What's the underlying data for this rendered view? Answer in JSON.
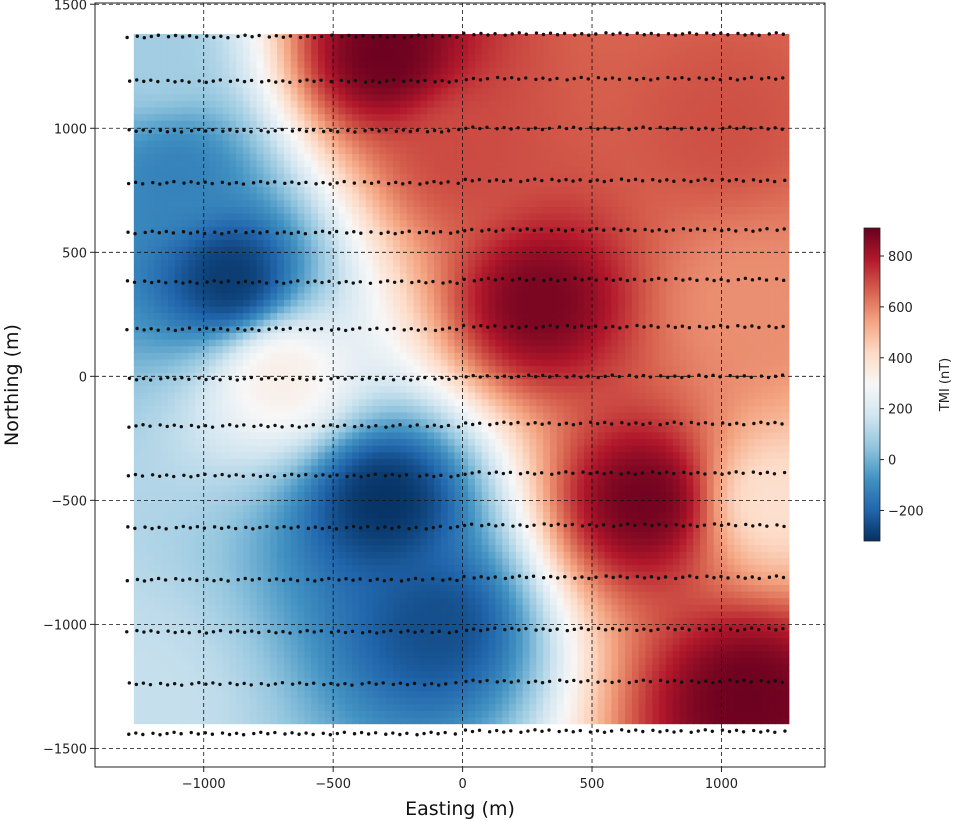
{
  "chart_data": {
    "type": "heatmap",
    "xlabel": "Easting (m)",
    "ylabel": "Northing (m)",
    "xlim": [
      -1420,
      1400
    ],
    "ylim": [
      -1575,
      1505
    ],
    "xticks": [
      -1000,
      -500,
      0,
      500,
      1000
    ],
    "xtick_labels": [
      "−1000",
      "−500",
      "0",
      "500",
      "1000"
    ],
    "yticks": [
      -1500,
      -1000,
      -500,
      0,
      500,
      1000,
      1500
    ],
    "ytick_labels": [
      "−1500",
      "−1000",
      "−500",
      "0",
      "500",
      "1000",
      "1500"
    ],
    "grid": true,
    "grid_style": "dashed",
    "colormap": "RdBu_r",
    "grid_extent": {
      "x": [
        -1270,
        1260
      ],
      "y": [
        -1400,
        1380
      ]
    },
    "colorbar": {
      "label": "TMI (nT)",
      "range": [
        -320,
        910
      ],
      "ticks": [
        -200,
        0,
        200,
        400,
        600,
        800
      ],
      "tick_labels": [
        "−200",
        "0",
        "200",
        "400",
        "600",
        "800"
      ],
      "colors": [
        "#053061",
        "#2166ac",
        "#4393c3",
        "#92c5de",
        "#d1e5f0",
        "#f7f7f7",
        "#fddbc7",
        "#f4a582",
        "#d6604d",
        "#b2182b",
        "#67001f"
      ]
    },
    "survey_lines_northing": [
      -1430,
      -1230,
      -1020,
      -810,
      -600,
      -390,
      -190,
      0,
      200,
      390,
      590,
      790,
      1000,
      1200,
      1380
    ],
    "survey_point_spacing_easting": 30,
    "field_samples": [
      {
        "easting": -1200,
        "northing": 1300,
        "tmi": 80
      },
      {
        "easting": -1100,
        "northing": 800,
        "tmi": -120
      },
      {
        "easting": -900,
        "northing": 400,
        "tmi": -290
      },
      {
        "easting": -700,
        "northing": 0,
        "tmi": 330
      },
      {
        "easting": -300,
        "northing": -500,
        "tmi": -310
      },
      {
        "easting": -100,
        "northing": -1000,
        "tmi": -250
      },
      {
        "easting": -300,
        "northing": 1300,
        "tmi": 900
      },
      {
        "easting": 0,
        "northing": 900,
        "tmi": 700
      },
      {
        "easting": 300,
        "northing": 300,
        "tmi": 880
      },
      {
        "easting": 700,
        "northing": -500,
        "tmi": 890
      },
      {
        "easting": 1100,
        "northing": -1300,
        "tmi": 900
      },
      {
        "easting": 1000,
        "northing": 1000,
        "tmi": 690
      },
      {
        "easting": 1100,
        "northing": 300,
        "tmi": 580
      },
      {
        "easting": 1200,
        "northing": -500,
        "tmi": 400
      },
      {
        "easting": -1250,
        "northing": -1300,
        "tmi": 150
      }
    ]
  }
}
